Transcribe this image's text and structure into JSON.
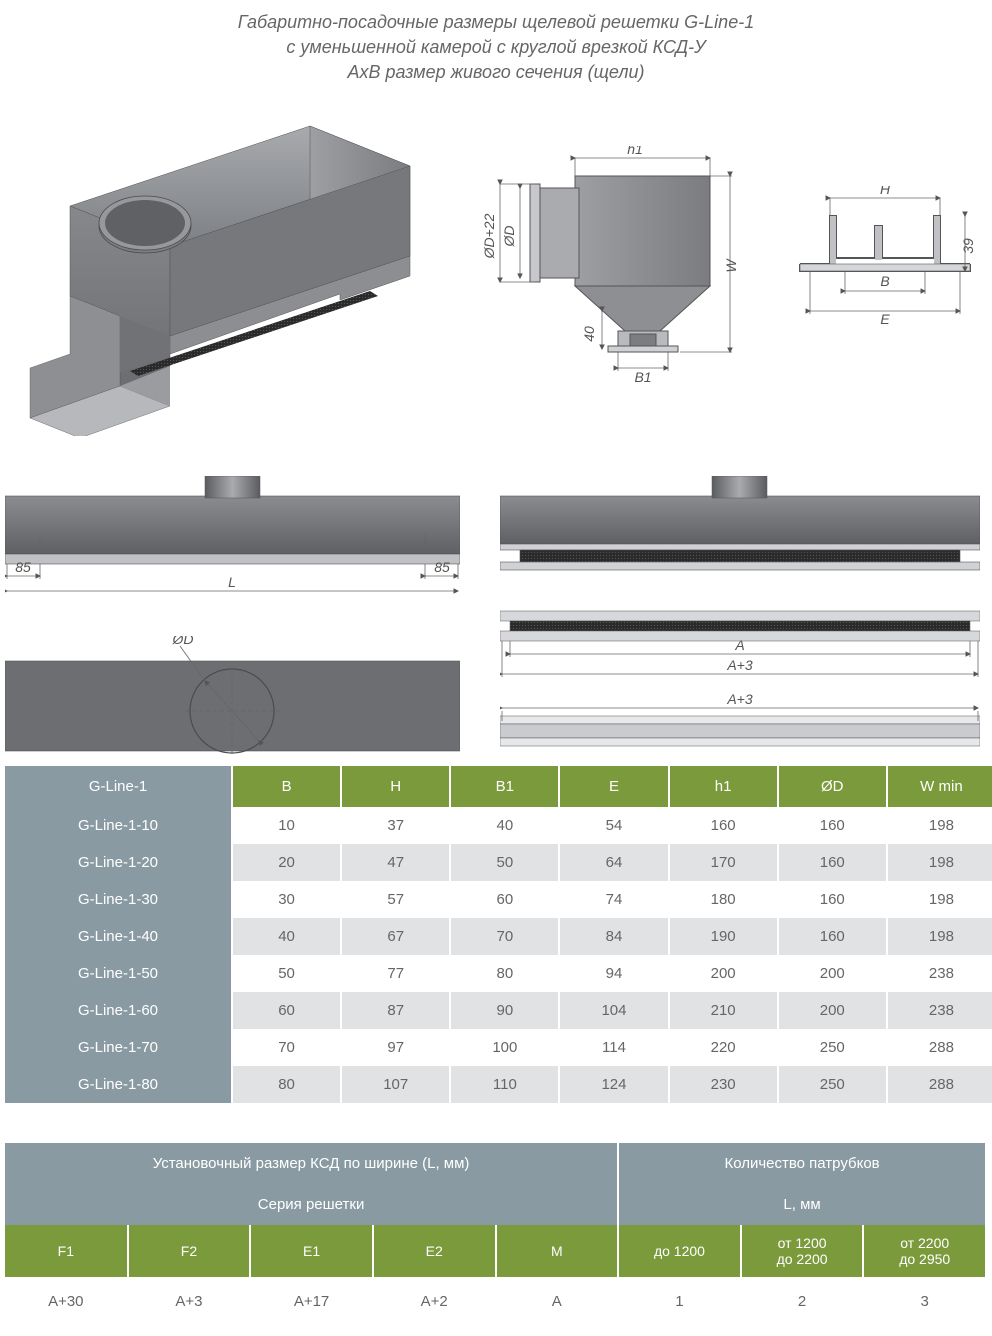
{
  "title": {
    "line1": "Габаритно-посадочные размеры щелевой решетки G-Line-1",
    "line2": "с уменьшенной камерой с круглой врезкой КСД-У",
    "line3": "AxB размер живого сечения (щели)"
  },
  "colors": {
    "green": "#7a9a3b",
    "grey": "#8a9aa2",
    "row_alt": "#e1e2e3",
    "metal_dark": "#6b6e72",
    "metal_mid": "#8e9094",
    "metal_light": "#b9bbbe",
    "metal_vlight": "#d3d5d7",
    "text": "#555555"
  },
  "dims": {
    "h1": "h1",
    "OD22": "ØD+22",
    "OD": "ØD",
    "W": "W",
    "v40": "40",
    "B1": "B1",
    "H": "H",
    "B": "B",
    "E": "E",
    "v39": "39",
    "v85a": "85",
    "v85b": "85",
    "L": "L",
    "A": "A",
    "A3a": "A+3",
    "A3b": "A+3"
  },
  "table1": {
    "headers": [
      "G-Line-1",
      "B",
      "H",
      "B1",
      "E",
      "h1",
      "ØD",
      "W min"
    ],
    "rows": [
      [
        "G-Line-1-10",
        "10",
        "37",
        "40",
        "54",
        "160",
        "160",
        "198"
      ],
      [
        "G-Line-1-20",
        "20",
        "47",
        "50",
        "64",
        "170",
        "160",
        "198"
      ],
      [
        "G-Line-1-30",
        "30",
        "57",
        "60",
        "74",
        "180",
        "160",
        "198"
      ],
      [
        "G-Line-1-40",
        "40",
        "67",
        "70",
        "84",
        "190",
        "160",
        "198"
      ],
      [
        "G-Line-1-50",
        "50",
        "77",
        "80",
        "94",
        "200",
        "200",
        "238"
      ],
      [
        "G-Line-1-60",
        "60",
        "87",
        "90",
        "104",
        "210",
        "200",
        "238"
      ],
      [
        "G-Line-1-70",
        "70",
        "97",
        "100",
        "114",
        "220",
        "250",
        "288"
      ],
      [
        "G-Line-1-80",
        "80",
        "107",
        "110",
        "124",
        "230",
        "250",
        "288"
      ]
    ]
  },
  "table2": {
    "top_left": "Установочный размер КСД по ширине (L, мм)",
    "top_right": "Количество патрубков",
    "sub_left": "Серия решетки",
    "sub_right": "L, мм",
    "headers": [
      "F1",
      "F2",
      "E1",
      "E2",
      "M",
      "до 1200",
      "от 1200\nдо 2200",
      "от 2200\nдо 2950"
    ],
    "row": [
      "A+30",
      "A+3",
      "A+17",
      "A+2",
      "A",
      "1",
      "2",
      "3"
    ]
  }
}
